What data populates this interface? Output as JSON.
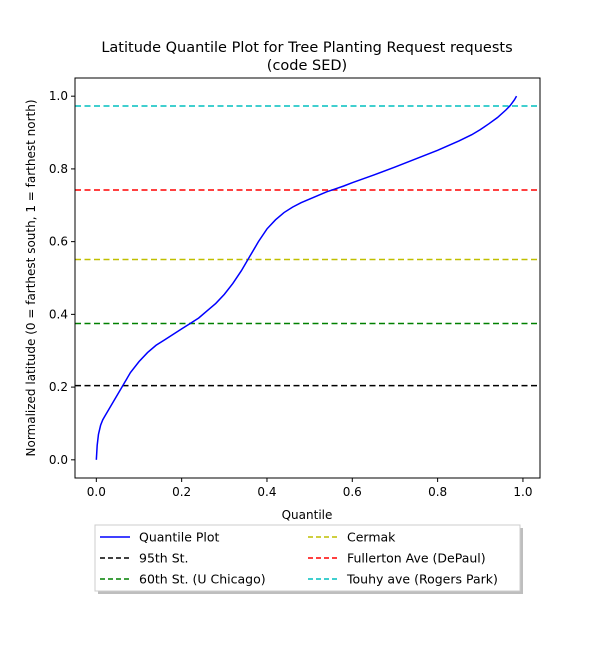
{
  "chart_data": {
    "type": "line",
    "title": "Latitude Quantile Plot for Tree Planting Request  requests",
    "subtitle": "(code SED)",
    "xlabel": "Quantile",
    "ylabel": "Normalized latitude (0 = farthest south, 1 = farthest north)",
    "xlim": [
      -0.05,
      1.04
    ],
    "ylim": [
      -0.05,
      1.05
    ],
    "x_ticks": [
      0.0,
      0.2,
      0.4,
      0.6,
      0.8,
      1.0
    ],
    "x_tick_labels": [
      "0.0",
      "0.2",
      "0.4",
      "0.6",
      "0.8",
      "1.0"
    ],
    "y_ticks": [
      0.0,
      0.2,
      0.4,
      0.6,
      0.8,
      1.0
    ],
    "y_tick_labels": [
      "0.0",
      "0.2",
      "0.4",
      "0.6",
      "0.8",
      "1.0"
    ],
    "grid": false,
    "legend_placement": "below-center",
    "series": [
      {
        "name": "Quantile Plot",
        "color": "#0000ff",
        "style": "solid",
        "x": [
          0.0,
          0.002,
          0.005,
          0.01,
          0.015,
          0.02,
          0.03,
          0.04,
          0.05,
          0.06,
          0.07,
          0.08,
          0.1,
          0.12,
          0.14,
          0.16,
          0.18,
          0.2,
          0.22,
          0.24,
          0.26,
          0.28,
          0.3,
          0.32,
          0.34,
          0.36,
          0.38,
          0.4,
          0.42,
          0.44,
          0.46,
          0.48,
          0.5,
          0.52,
          0.54,
          0.56,
          0.58,
          0.6,
          0.65,
          0.7,
          0.75,
          0.8,
          0.85,
          0.88,
          0.9,
          0.92,
          0.94,
          0.96,
          0.97,
          0.98,
          0.985
        ],
        "y": [
          0.0,
          0.04,
          0.07,
          0.095,
          0.11,
          0.12,
          0.14,
          0.16,
          0.18,
          0.2,
          0.22,
          0.24,
          0.27,
          0.295,
          0.315,
          0.33,
          0.345,
          0.36,
          0.375,
          0.39,
          0.41,
          0.43,
          0.455,
          0.485,
          0.52,
          0.56,
          0.6,
          0.635,
          0.66,
          0.68,
          0.695,
          0.707,
          0.717,
          0.727,
          0.737,
          0.745,
          0.753,
          0.762,
          0.783,
          0.805,
          0.828,
          0.851,
          0.877,
          0.894,
          0.908,
          0.924,
          0.941,
          0.962,
          0.974,
          0.99,
          1.0
        ]
      },
      {
        "name": "95th St.",
        "color": "#000000",
        "style": "dashed",
        "hline": 0.204
      },
      {
        "name": "60th St. (U Chicago)",
        "color": "#008000",
        "style": "dashed",
        "hline": 0.375
      },
      {
        "name": "Cermak",
        "color": "#bfbf00",
        "style": "dashed",
        "hline": 0.551
      },
      {
        "name": "Fullerton Ave (DePaul)",
        "color": "#ff0000",
        "style": "dashed",
        "hline": 0.742
      },
      {
        "name": "Touhy ave (Rogers Park)",
        "color": "#00bfbf",
        "style": "dashed",
        "hline": 0.973
      }
    ]
  }
}
